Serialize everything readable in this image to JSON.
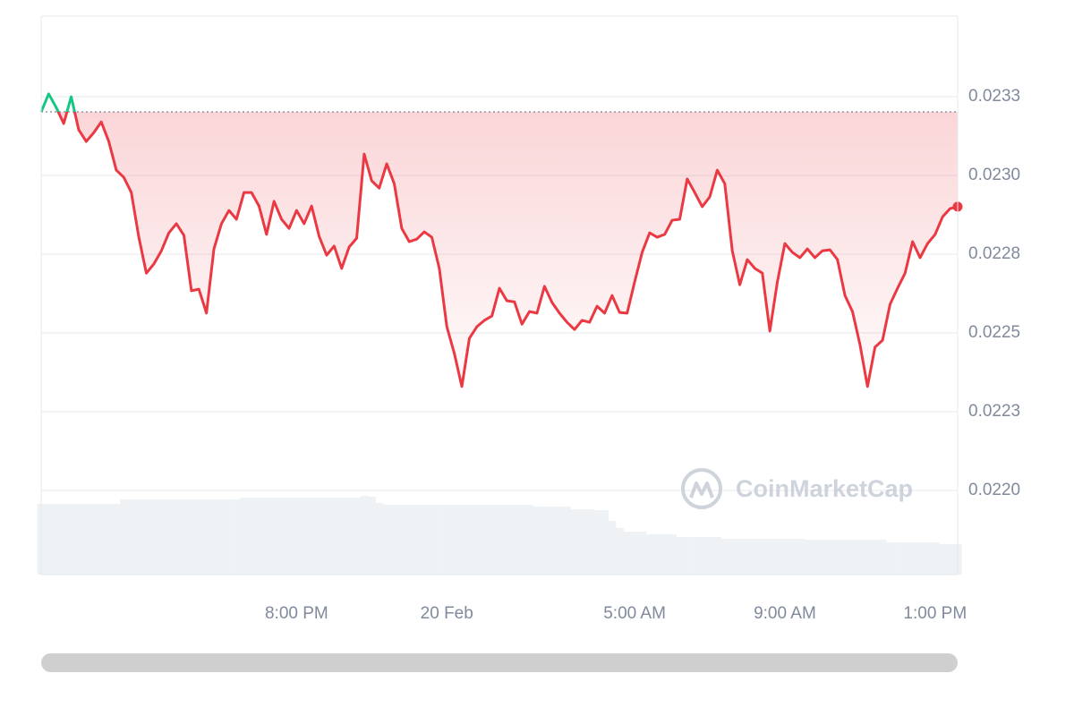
{
  "chart_data": {
    "type": "line",
    "categories": [
      null,
      null,
      null,
      null,
      null,
      null,
      null,
      null,
      null,
      null,
      null,
      null,
      null,
      null,
      null,
      null,
      null,
      null,
      null,
      null,
      null,
      null,
      null,
      null,
      null,
      null,
      null,
      null,
      null,
      null,
      null,
      null,
      null,
      null,
      "8:00 PM",
      null,
      null,
      null,
      null,
      null,
      null,
      null,
      null,
      null,
      null,
      null,
      null,
      null,
      null,
      null,
      null,
      null,
      null,
      null,
      "20 Feb",
      null,
      null,
      null,
      null,
      null,
      null,
      null,
      null,
      null,
      null,
      null,
      null,
      null,
      null,
      null,
      null,
      null,
      null,
      null,
      null,
      null,
      null,
      null,
      null,
      "5:00 AM",
      null,
      null,
      null,
      null,
      null,
      null,
      null,
      null,
      null,
      null,
      null,
      null,
      null,
      null,
      null,
      null,
      null,
      null,
      null,
      "9:00 AM",
      null,
      null,
      null,
      null,
      null,
      null,
      null,
      null,
      null,
      null,
      null,
      null,
      null,
      null,
      null,
      null,
      null,
      null,
      null,
      "1:00 PM",
      null,
      null,
      null
    ],
    "values": [
      0.023202,
      0.023259,
      0.023216,
      0.023165,
      0.02325,
      0.023145,
      0.023108,
      0.023136,
      0.02317,
      0.023108,
      0.023017,
      0.022994,
      0.022946,
      0.022804,
      0.02269,
      0.022719,
      0.022761,
      0.022818,
      0.022847,
      0.02281,
      0.022634,
      0.022639,
      0.022563,
      0.022767,
      0.022847,
      0.022889,
      0.022861,
      0.022946,
      0.022946,
      0.022903,
      0.022813,
      0.022918,
      0.022861,
      0.022832,
      0.022889,
      0.022847,
      0.022903,
      0.022807,
      0.022747,
      0.022776,
      0.022705,
      0.022773,
      0.022801,
      0.023068,
      0.022983,
      0.02296,
      0.023037,
      0.022974,
      0.022832,
      0.02279,
      0.022798,
      0.022821,
      0.022804,
      0.022705,
      0.02252,
      0.022435,
      0.02233,
      0.022483,
      0.02252,
      0.02254,
      0.022554,
      0.022642,
      0.022602,
      0.022599,
      0.022528,
      0.022568,
      0.022563,
      0.022648,
      0.022597,
      0.022563,
      0.022534,
      0.022511,
      0.02254,
      0.022534,
      0.022585,
      0.022563,
      0.022619,
      0.022565,
      0.022563,
      0.022662,
      0.022756,
      0.022818,
      0.022804,
      0.022813,
      0.022858,
      0.022861,
      0.022989,
      0.022946,
      0.022901,
      0.022932,
      0.023017,
      0.022974,
      0.022761,
      0.022653,
      0.022733,
      0.022705,
      0.02269,
      0.022506,
      0.022662,
      0.022784,
      0.022756,
      0.022739,
      0.022767,
      0.022739,
      0.022761,
      0.022764,
      0.022733,
      0.022619,
      0.022568,
      0.022463,
      0.02233,
      0.022455,
      0.022477,
      0.022591,
      0.022642,
      0.02269,
      0.02279,
      0.022739,
      0.022784,
      0.022813,
      0.022869,
      0.022895,
      0.022901
    ],
    "baseline": 0.023202,
    "up_color": "#16c784",
    "down_color": "#ea3943",
    "volume": [
      79,
      79,
      79,
      79,
      79,
      79,
      79,
      79,
      79,
      79,
      79,
      84,
      84,
      84,
      84,
      84,
      84,
      84,
      84,
      84,
      84,
      84,
      84,
      84,
      84,
      84,
      84,
      86,
      86,
      86,
      86,
      86,
      86,
      86,
      86,
      86,
      86,
      86,
      86,
      86,
      86,
      86,
      86,
      88,
      87,
      80,
      78,
      78,
      78,
      78,
      78,
      78,
      78,
      78,
      78,
      78,
      78,
      78,
      78,
      78,
      78,
      78,
      78,
      78,
      78,
      78,
      76,
      76,
      76,
      76,
      76,
      73,
      73,
      73,
      72,
      72,
      60,
      52,
      48,
      48,
      48,
      45,
      45,
      45,
      45,
      42,
      42,
      42,
      42,
      42,
      42,
      40,
      40,
      40,
      40,
      40,
      40,
      40,
      40,
      40,
      40,
      40,
      39,
      39,
      39,
      39,
      39,
      39,
      39,
      39,
      39,
      39,
      39,
      36,
      36,
      36,
      36,
      36,
      36,
      36,
      34,
      34,
      34
    ],
    "volume_color": "#eff2f5",
    "y2lim": [
      0,
      100
    ],
    "ylim": [
      0.021733,
      0.023506
    ],
    "yticks": [
      {
        "value": 0.02325,
        "label": "0.0233"
      },
      {
        "value": 0.023,
        "label": "0.0230"
      },
      {
        "value": 0.02275,
        "label": "0.0228"
      },
      {
        "value": 0.0225,
        "label": "0.0225"
      },
      {
        "value": 0.02225,
        "label": "0.0223"
      },
      {
        "value": 0.022,
        "label": "0.0220"
      }
    ],
    "grid": true,
    "watermark": "CoinMarketCap"
  }
}
